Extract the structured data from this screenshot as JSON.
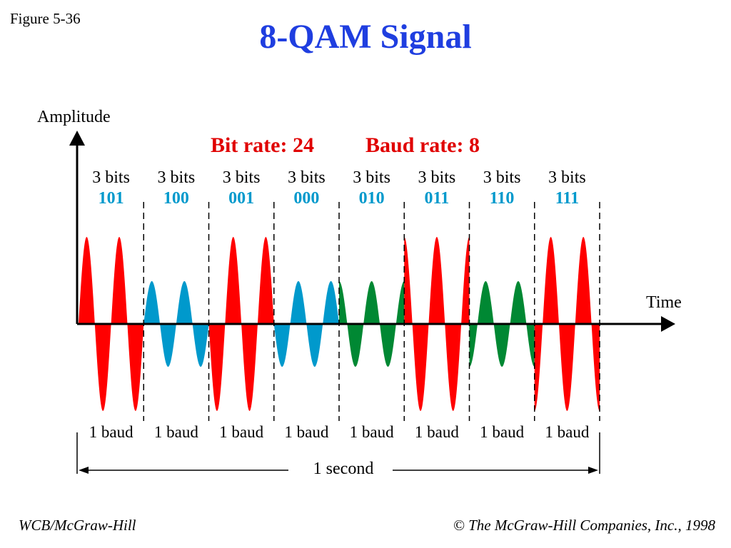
{
  "figure_label": "Figure 5-36",
  "title": "8-QAM Signal",
  "axis": {
    "y_label": "Amplitude",
    "x_label": "Time"
  },
  "bit_rate_label": "Bit rate: 24",
  "baud_rate_label": "Baud rate: 8",
  "segments": [
    {
      "bits_label": "3 bits",
      "code": "101",
      "baud_label": "1 baud",
      "amplitude": "high",
      "phase": "0",
      "color": "#ff0000"
    },
    {
      "bits_label": "3 bits",
      "code": "100",
      "baud_label": "1 baud",
      "amplitude": "low",
      "phase": "0",
      "color": "#0099cc"
    },
    {
      "bits_label": "3 bits",
      "code": "001",
      "baud_label": "1 baud",
      "amplitude": "high",
      "phase": "180",
      "color": "#ff0000"
    },
    {
      "bits_label": "3 bits",
      "code": "000",
      "baud_label": "1 baud",
      "amplitude": "low",
      "phase": "180",
      "color": "#0099cc"
    },
    {
      "bits_label": "3 bits",
      "code": "010",
      "baud_label": "1 baud",
      "amplitude": "low",
      "phase": "90",
      "color": "#008833"
    },
    {
      "bits_label": "3 bits",
      "code": "011",
      "baud_label": "1 baud",
      "amplitude": "high",
      "phase": "90",
      "color": "#ff0000"
    },
    {
      "bits_label": "3 bits",
      "code": "110",
      "baud_label": "1 baud",
      "amplitude": "low",
      "phase": "270",
      "color": "#008833"
    },
    {
      "bits_label": "3 bits",
      "code": "111",
      "baud_label": "1 baud",
      "amplitude": "high",
      "phase": "270",
      "color": "#ff0000"
    }
  ],
  "duration_label": "1 second",
  "footer_left": "WCB/McGraw-Hill",
  "footer_right": "© The McGraw-Hill Companies, Inc., 1998",
  "colors": {
    "title": "#1f3ee0",
    "rate_text": "#e00000",
    "code_text": "#0099cc"
  }
}
